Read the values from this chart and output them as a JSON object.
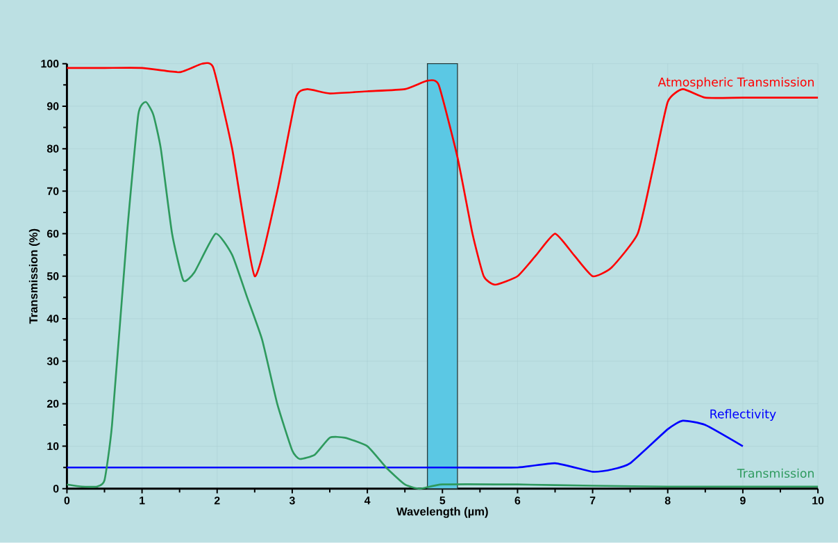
{
  "chart_data": {
    "type": "line",
    "xlabel": "Wavelength (µm)",
    "ylabel": "Transmission (%)",
    "xlim": [
      0,
      10
    ],
    "ylim": [
      0,
      100
    ],
    "xticks": [
      0,
      1,
      2,
      3,
      4,
      5,
      6,
      7,
      8,
      9,
      10
    ],
    "yticks": [
      0,
      10,
      20,
      30,
      40,
      50,
      60,
      70,
      80,
      90,
      100
    ],
    "grid": true,
    "bands": [
      {
        "axis": "x",
        "from": 4.8,
        "to": 5.2,
        "color": "#5bc8e4"
      }
    ],
    "series": [
      {
        "name": "Atmospheric Transmission",
        "color": "#ff0000",
        "x": [
          0,
          0.5,
          1,
          1.5,
          1.8,
          1.95,
          2.2,
          2.5,
          2.8,
          3.05,
          3.2,
          3.5,
          4,
          4.5,
          4.8,
          4.95,
          5.2,
          5.4,
          5.55,
          5.7,
          6,
          6.25,
          6.5,
          6.75,
          7,
          7.25,
          7.6,
          7.8,
          8,
          8.2,
          8.5,
          9,
          10
        ],
        "values": [
          99,
          99,
          99,
          98,
          100,
          99,
          80,
          50,
          70,
          92,
          94,
          93,
          93.5,
          94,
          96,
          95,
          78,
          60,
          50,
          48,
          50,
          55,
          60,
          55,
          50,
          52,
          60,
          75,
          91,
          94,
          92,
          92,
          92
        ]
      },
      {
        "name": "Reflectivity",
        "color": "#0000ff",
        "x": [
          0,
          5,
          6,
          6.5,
          7,
          7.25,
          7.5,
          8,
          8.2,
          8.5,
          9
        ],
        "values": [
          5,
          5,
          5,
          6,
          4,
          4.5,
          6,
          14,
          16,
          15,
          10
        ]
      },
      {
        "name": "Transmission",
        "color": "#2e9a5e",
        "x": [
          0,
          0.2,
          0.4,
          0.5,
          0.6,
          0.8,
          0.95,
          1.05,
          1.15,
          1.25,
          1.4,
          1.55,
          1.7,
          1.98,
          2.2,
          2.4,
          2.6,
          2.8,
          3,
          3.1,
          3.3,
          3.5,
          3.7,
          4,
          4.25,
          4.5,
          4.7,
          5,
          6,
          7,
          8,
          10
        ],
        "values": [
          1,
          0.5,
          0.5,
          2,
          15,
          60,
          88,
          91,
          88,
          80,
          60,
          49,
          51,
          60,
          55,
          45,
          35,
          20,
          9,
          7,
          8,
          12,
          12,
          10,
          5,
          1,
          0,
          1,
          1,
          0.7,
          0.5,
          0.5
        ]
      }
    ]
  }
}
